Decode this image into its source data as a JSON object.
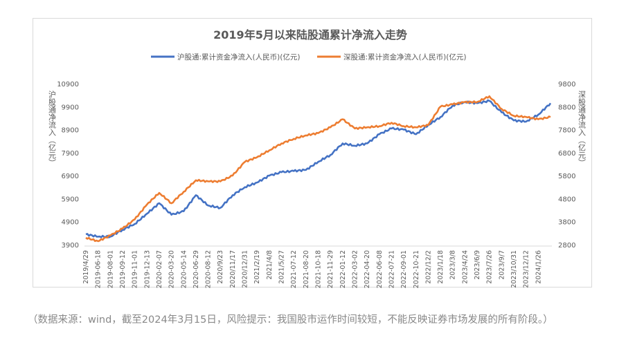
{
  "chart_data": {
    "type": "line",
    "title": "2019年5月以来陆股通累计净流入走势",
    "y_left_label": "沪股通净流入（亿元）",
    "y_right_label": "深股通净流入（亿元）",
    "y_left_ticks": [
      "3900",
      "4900",
      "5900",
      "6900",
      "7900",
      "8900",
      "9900",
      "10900"
    ],
    "y_right_ticks": [
      "2800",
      "3800",
      "4800",
      "5800",
      "6800",
      "7800",
      "8800",
      "9800"
    ],
    "y_left_range": [
      3900,
      10900
    ],
    "y_right_range": [
      2800,
      9800
    ],
    "x_ticks": [
      "2019/4/29",
      "2019-06-18",
      "2019-08-01",
      "2019-09-12",
      "2019-11-01",
      "2019-12-13",
      "2020-02-07",
      "2020-03-20",
      "2020-05-14",
      "2020-06-29",
      "2020-08-12",
      "2020/9/23",
      "2020/11/17",
      "2020/12/31",
      "2021/2/19",
      "2021/4/8",
      "2021/5/27",
      "2021-07-12",
      "2021-08-20",
      "2021-10-18",
      "2021-11-29",
      "2022-01-12",
      "2022-03-02",
      "2022-04-20",
      "2022-06-08",
      "2022-07-21",
      "2022-09-01",
      "2022-10-21",
      "2022/12/2",
      "2023/1/18",
      "2023/3/8",
      "2023/4/24",
      "2023/6/9",
      "2023/7/26",
      "2023/9/7",
      "2023/10/31",
      "2023/12/12",
      "2024/1/26"
    ],
    "grid": false,
    "legend": "top",
    "series": [
      {
        "name": "沪股通:累计资金净流入(人民币)(亿元)",
        "axis": "left",
        "color": "#4472c4",
        "x": [
          "2019/4/29",
          "2019-06-18",
          "2019-08-01",
          "2019-09-12",
          "2019-11-01",
          "2019-12-13",
          "2020-02-07",
          "2020-03-20",
          "2020-05-14",
          "2020-06-29",
          "2020-08-12",
          "2020/9/23",
          "2020/11/17",
          "2020/12/31",
          "2021/2/19",
          "2021/4/8",
          "2021/5/27",
          "2021-07-12",
          "2021-08-20",
          "2021-10-18",
          "2021-11-29",
          "2022-01-12",
          "2022-03-02",
          "2022-04-20",
          "2022-06-08",
          "2022-07-21",
          "2022-09-01",
          "2022-10-21",
          "2022/12/2",
          "2023/1/18",
          "2023/3/8",
          "2023/4/24",
          "2023/6/9",
          "2023/7/26",
          "2023/9/7",
          "2023/10/31",
          "2023/12/12",
          "2024/1/26",
          "2024/3/15"
        ],
        "values": [
          4350,
          4250,
          4250,
          4550,
          4800,
          5250,
          5700,
          5200,
          5350,
          6050,
          5600,
          5500,
          6050,
          6400,
          6600,
          6900,
          7050,
          7100,
          7150,
          7500,
          7800,
          8300,
          8200,
          8300,
          8700,
          8950,
          8900,
          8700,
          9100,
          9450,
          9950,
          10100,
          10050,
          10150,
          9650,
          9300,
          9250,
          9550,
          10050
        ]
      },
      {
        "name": "深股通:累计资金净流入(人民币)(亿元)",
        "axis": "right",
        "color": "#ed7d31",
        "x": [
          "2019/4/29",
          "2019-06-18",
          "2019-08-01",
          "2019-09-12",
          "2019-11-01",
          "2019-12-13",
          "2020-02-07",
          "2020-03-20",
          "2020-05-14",
          "2020-06-29",
          "2020-08-12",
          "2020/9/23",
          "2020/11/17",
          "2020/12/31",
          "2021/2/19",
          "2021/4/8",
          "2021/5/27",
          "2021-07-12",
          "2021-08-20",
          "2021-10-18",
          "2021-11-29",
          "2022-01-12",
          "2022-03-02",
          "2022-04-20",
          "2022-06-08",
          "2022-07-21",
          "2022-09-01",
          "2022-10-21",
          "2022/12/2",
          "2023/1/18",
          "2023/3/8",
          "2023/4/24",
          "2023/6/9",
          "2023/7/26",
          "2023/9/7",
          "2023/10/31",
          "2023/12/12",
          "2024/1/26",
          "2024/3/15"
        ],
        "values": [
          3100,
          2950,
          3200,
          3500,
          3900,
          4550,
          5050,
          4600,
          5100,
          5600,
          5550,
          5550,
          5800,
          6400,
          6600,
          6900,
          7200,
          7400,
          7550,
          7650,
          7900,
          8250,
          7850,
          7900,
          7950,
          8100,
          7950,
          7900,
          8000,
          8800,
          8900,
          9000,
          9000,
          9250,
          8700,
          8400,
          8350,
          8250,
          8350
        ]
      }
    ]
  },
  "footnote": "（数据来源：wind，截至2024年3月15日，风险提示：我国股市运作时间较短，不能反映证券市场发展的所有阶段。）"
}
